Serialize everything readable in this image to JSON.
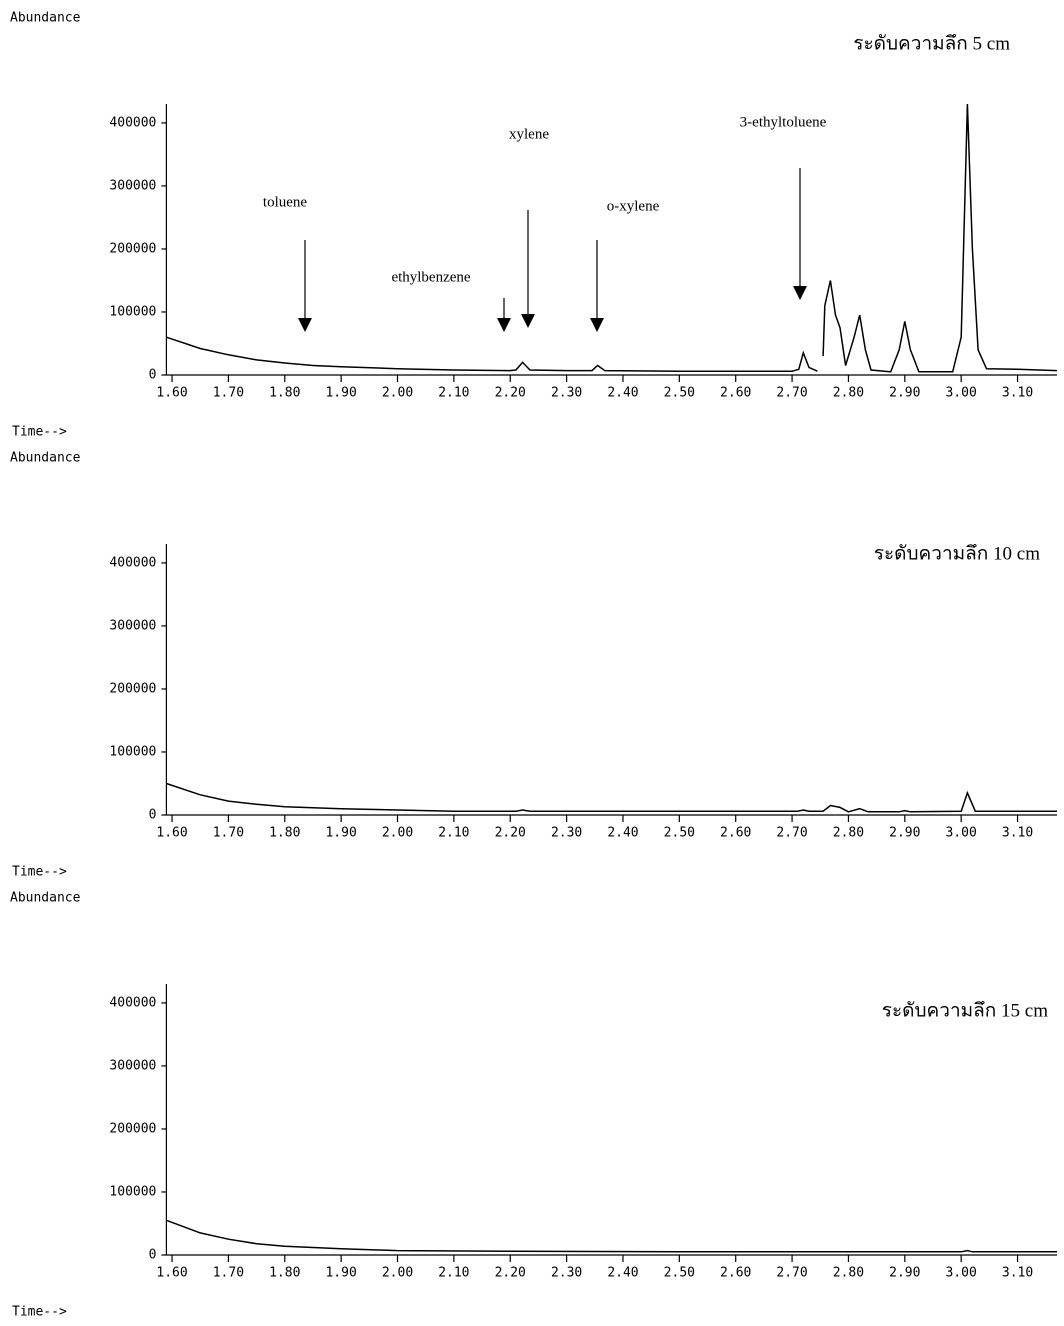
{
  "chart_data": [
    {
      "type": "line",
      "subtitle": "ระดับความลึก 5 cm",
      "y_label": "Abundance",
      "x_label": "Time-->",
      "color": "#000000",
      "x": [
        1.59,
        1.65,
        1.7,
        1.75,
        1.8,
        1.85,
        1.9,
        2.0,
        2.1,
        2.2,
        2.21,
        2.222,
        2.235,
        2.3,
        2.345,
        2.355,
        2.368,
        2.5,
        2.7,
        2.712,
        2.72,
        2.73,
        2.745,
        2.75,
        2.755,
        2.758,
        2.768,
        2.777,
        2.785,
        2.795,
        2.81,
        2.82,
        2.83,
        2.84,
        2.875,
        2.89,
        2.9,
        2.91,
        2.925,
        2.985,
        3.0,
        3.011,
        3.02,
        3.03,
        3.045,
        3.1,
        3.17
      ],
      "values": [
        60000,
        42000,
        32000,
        24000,
        19000,
        15000,
        13000,
        10000,
        8000,
        7000,
        8000,
        20000,
        8000,
        7000,
        7000,
        15000,
        7000,
        6000,
        6000,
        9000,
        35000,
        12000,
        6000,
        null,
        30000,
        110000,
        150000,
        95000,
        75000,
        15000,
        60000,
        95000,
        40000,
        8000,
        5000,
        40000,
        85000,
        40000,
        5000,
        5000,
        60000,
        430000,
        200000,
        40000,
        10000,
        9000,
        7000
      ],
      "xlim": [
        1.59,
        3.17
      ],
      "ylim": [
        0,
        430000
      ],
      "xticks": [
        {
          "value": 1.6,
          "label": "1.60"
        },
        {
          "value": 1.7,
          "label": "1.70"
        },
        {
          "value": 1.8,
          "label": "1.80"
        },
        {
          "value": 1.9,
          "label": "1.90"
        },
        {
          "value": 2.0,
          "label": "2.00"
        },
        {
          "value": 2.1,
          "label": "2.10"
        },
        {
          "value": 2.2,
          "label": "2.20"
        },
        {
          "value": 2.3,
          "label": "2.30"
        },
        {
          "value": 2.4,
          "label": "2.40"
        },
        {
          "value": 2.5,
          "label": "2.50"
        },
        {
          "value": 2.6,
          "label": "2.60"
        },
        {
          "value": 2.7,
          "label": "2.70"
        },
        {
          "value": 2.8,
          "label": "2.80"
        },
        {
          "value": 2.9,
          "label": "2.90"
        },
        {
          "value": 3.0,
          "label": "3.00"
        },
        {
          "value": 3.1,
          "label": "3.10"
        }
      ],
      "yticks": [
        0,
        100000,
        200000,
        300000,
        400000
      ],
      "annotations": [
        "toluene",
        "ethylbenzene",
        "xylene",
        "o-xylene",
        "3-ethyltoluene"
      ]
    },
    {
      "type": "line",
      "subtitle": "ระดับความลึก 10 cm",
      "y_label": "Abundance",
      "x_label": "Time-->",
      "color": "#000000",
      "x": [
        1.59,
        1.65,
        1.7,
        1.75,
        1.8,
        1.9,
        2.0,
        2.1,
        2.21,
        2.222,
        2.235,
        2.5,
        2.71,
        2.72,
        2.73,
        2.755,
        2.768,
        2.785,
        2.8,
        2.82,
        2.835,
        2.89,
        2.9,
        2.91,
        3.0,
        3.011,
        3.025,
        3.1,
        3.17
      ],
      "values": [
        50000,
        32000,
        22000,
        17000,
        13000,
        10000,
        8000,
        6000,
        6000,
        8000,
        6000,
        6000,
        6000,
        8000,
        6000,
        6000,
        15000,
        12000,
        5000,
        10000,
        5000,
        5000,
        7000,
        5000,
        6000,
        35000,
        6000,
        6000,
        6000
      ],
      "xlim": [
        1.59,
        3.17
      ],
      "ylim": [
        0,
        430000
      ],
      "xticks": [
        {
          "value": 1.6,
          "label": "1.60"
        },
        {
          "value": 1.7,
          "label": "1.70"
        },
        {
          "value": 1.8,
          "label": "1.80"
        },
        {
          "value": 1.9,
          "label": "1.90"
        },
        {
          "value": 2.0,
          "label": "2.00"
        },
        {
          "value": 2.1,
          "label": "2.10"
        },
        {
          "value": 2.2,
          "label": "2.20"
        },
        {
          "value": 2.3,
          "label": "2.30"
        },
        {
          "value": 2.4,
          "label": "2.40"
        },
        {
          "value": 2.5,
          "label": "2.50"
        },
        {
          "value": 2.6,
          "label": "2.60"
        },
        {
          "value": 2.7,
          "label": "2.70"
        },
        {
          "value": 2.8,
          "label": "2.80"
        },
        {
          "value": 2.9,
          "label": "2.90"
        },
        {
          "value": 3.0,
          "label": "3.00"
        },
        {
          "value": 3.1,
          "label": "3.10"
        }
      ],
      "yticks": [
        0,
        100000,
        200000,
        300000,
        400000
      ]
    },
    {
      "type": "line",
      "subtitle": "ระดับความลึก 15 cm",
      "y_label": "Abundance",
      "x_label": "Time-->",
      "color": "#000000",
      "x": [
        1.59,
        1.65,
        1.7,
        1.75,
        1.8,
        1.9,
        2.0,
        2.2,
        2.5,
        3.0,
        3.011,
        3.02,
        3.17
      ],
      "values": [
        55000,
        35000,
        25000,
        18000,
        14000,
        10000,
        7000,
        6000,
        5000,
        5000,
        7000,
        5000,
        5000
      ],
      "xlim": [
        1.59,
        3.17
      ],
      "ylim": [
        0,
        430000
      ],
      "xticks": [
        {
          "value": 1.6,
          "label": "1.60"
        },
        {
          "value": 1.7,
          "label": "1.70"
        },
        {
          "value": 1.8,
          "label": "1.80"
        },
        {
          "value": 1.9,
          "label": "1.90"
        },
        {
          "value": 2.0,
          "label": "2.00"
        },
        {
          "value": 2.1,
          "label": "2.10"
        },
        {
          "value": 2.2,
          "label": "2.20"
        },
        {
          "value": 2.3,
          "label": "2.30"
        },
        {
          "value": 2.4,
          "label": "2.40"
        },
        {
          "value": 2.5,
          "label": "2.50"
        },
        {
          "value": 2.6,
          "label": "2.60"
        },
        {
          "value": 2.7,
          "label": "2.70"
        },
        {
          "value": 2.8,
          "label": "2.80"
        },
        {
          "value": 2.9,
          "label": "2.90"
        },
        {
          "value": 3.0,
          "label": "3.00"
        },
        {
          "value": 3.1,
          "label": "3.10"
        }
      ],
      "yticks": [
        0,
        100000,
        200000,
        300000,
        400000
      ]
    }
  ]
}
